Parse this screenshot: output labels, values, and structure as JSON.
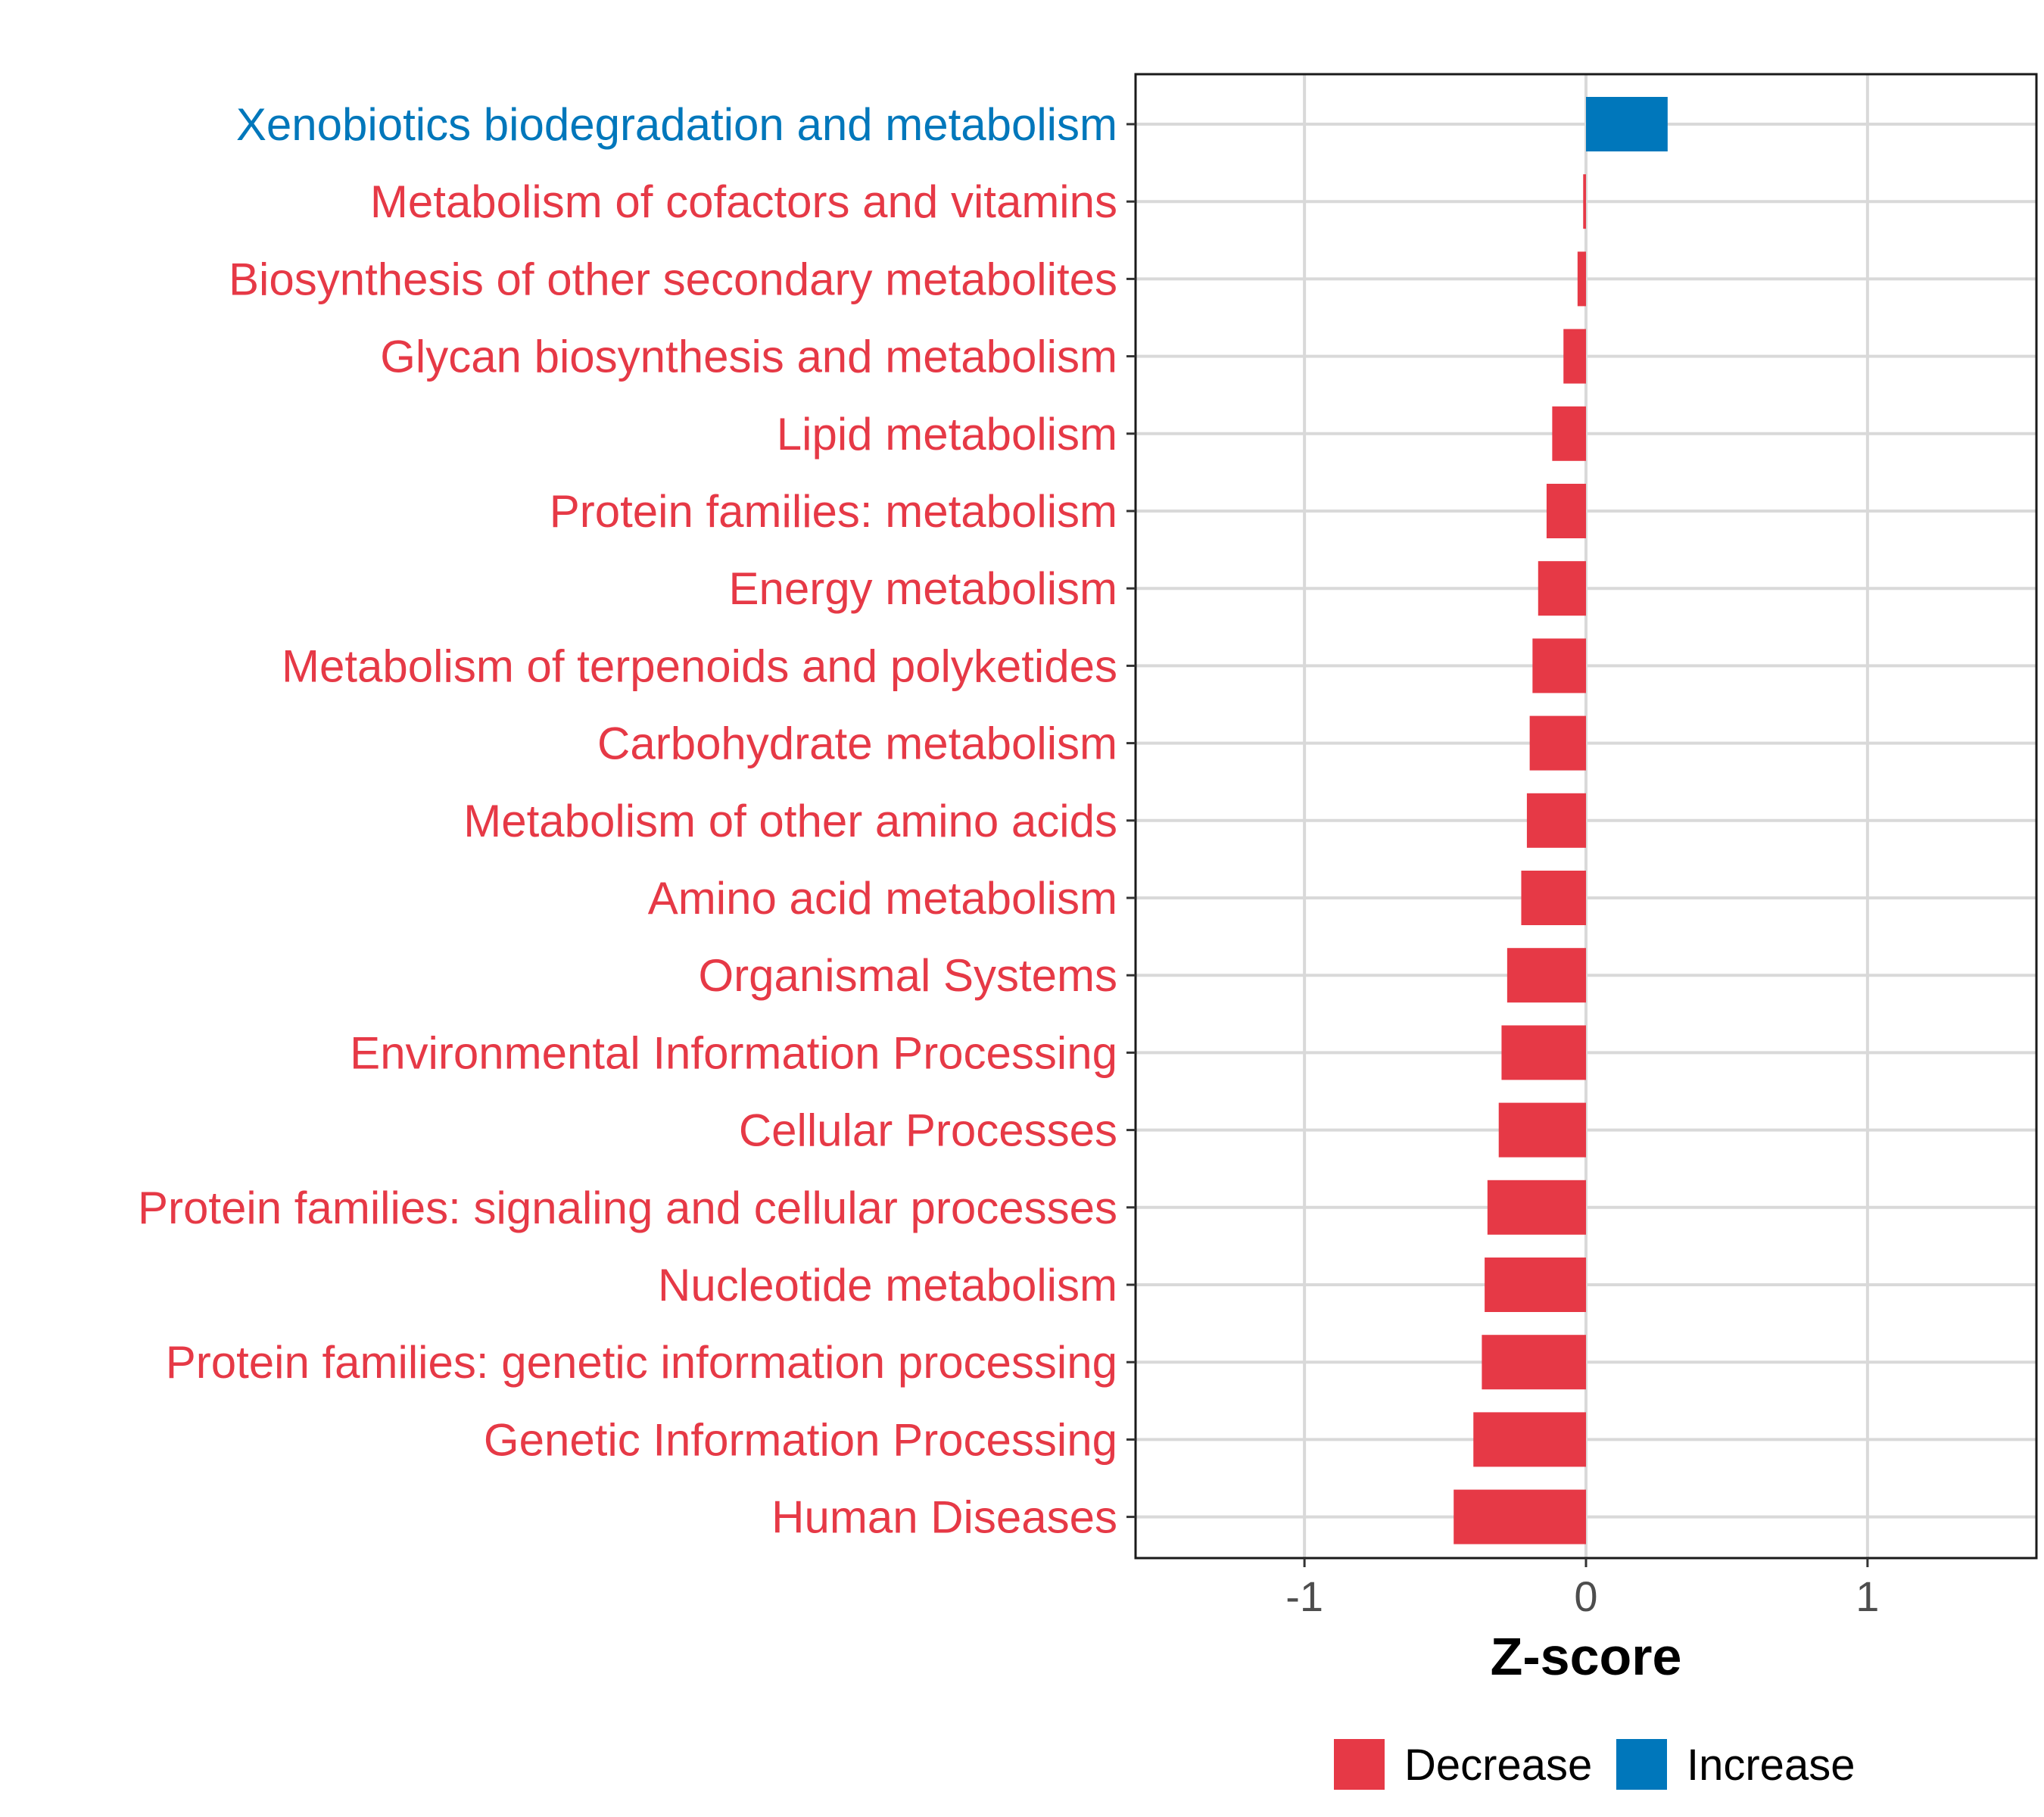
{
  "chart_data": {
    "type": "bar",
    "orientation": "horizontal",
    "categories": [
      "Xenobiotics biodegradation and metabolism",
      "Metabolism of cofactors and vitamins",
      "Biosynthesis of other secondary metabolites",
      "Glycan biosynthesis and metabolism",
      "Lipid metabolism",
      "Protein families: metabolism",
      "Energy metabolism",
      "Metabolism of terpenoids and polyketides",
      "Carbohydrate metabolism",
      "Metabolism of other amino acids",
      "Amino acid metabolism",
      "Organismal Systems",
      "Environmental Information Processing",
      "Cellular Processes",
      "Protein families: signaling and cellular processes",
      "Nucleotide metabolism",
      "Protein families: genetic information processing",
      "Genetic Information Processing",
      "Human Diseases"
    ],
    "values": [
      0.29,
      -0.01,
      -0.03,
      -0.08,
      -0.12,
      -0.14,
      -0.17,
      -0.19,
      -0.2,
      -0.21,
      -0.23,
      -0.28,
      -0.3,
      -0.31,
      -0.35,
      -0.36,
      -0.37,
      -0.4,
      -0.47
    ],
    "groups": [
      "Increase",
      "Decrease",
      "Decrease",
      "Decrease",
      "Decrease",
      "Decrease",
      "Decrease",
      "Decrease",
      "Decrease",
      "Decrease",
      "Decrease",
      "Decrease",
      "Decrease",
      "Decrease",
      "Decrease",
      "Decrease",
      "Decrease",
      "Decrease",
      "Decrease"
    ],
    "xlabel": "Z-score",
    "ylabel": "",
    "xlim": [
      -1.6,
      1.6
    ],
    "xticks": [
      -1,
      0,
      1
    ],
    "xtick_labels": [
      "-1",
      "0",
      "1"
    ],
    "grid": true,
    "legend": {
      "position": "bottom",
      "items": [
        {
          "label": "Decrease",
          "color": "#e63946"
        },
        {
          "label": "Increase",
          "color": "#0077bb"
        }
      ]
    }
  },
  "colors": {
    "Decrease": "#e63946",
    "Increase": "#0077bb",
    "grid": "#d9d9d9"
  }
}
